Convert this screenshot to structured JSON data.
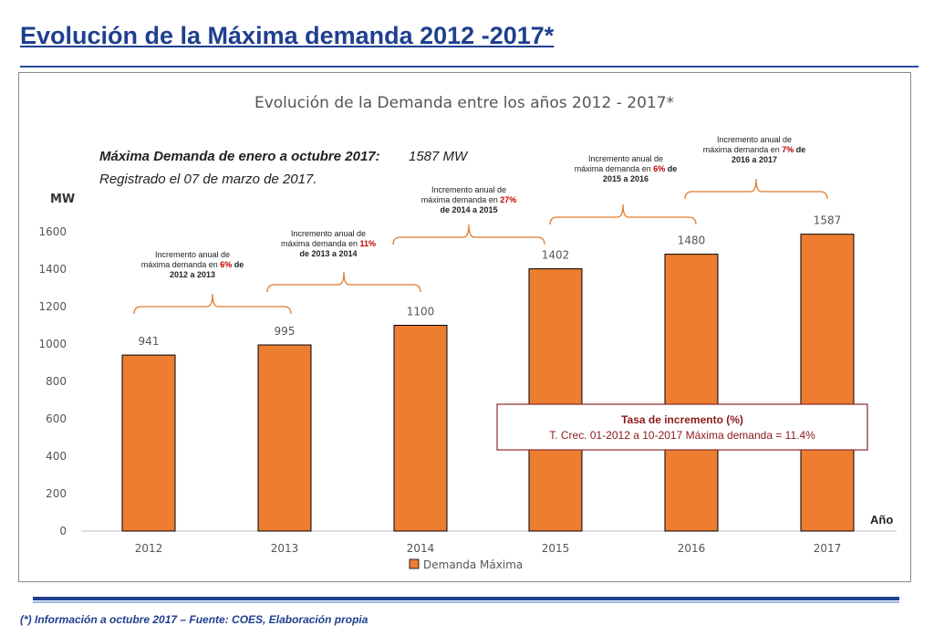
{
  "page": {
    "title": "Evolución de la Máxima demanda 2012 -2017*",
    "footnote": "(*) Información a octubre 2017 – Fuente: COES, Elaboración propia"
  },
  "chart_data": {
    "type": "bar",
    "title": "Evolución de la Demanda entre los años 2012 - 2017*",
    "ylabel": "MW",
    "xlabel": "Año",
    "ylim": [
      0,
      1600
    ],
    "yticks": [
      0,
      200,
      400,
      600,
      800,
      1000,
      1200,
      1400,
      1600
    ],
    "categories": [
      "2012",
      "2013",
      "2014",
      "2015",
      "2016",
      "2017"
    ],
    "series": [
      {
        "name": "Demanda Máxima",
        "values": [
          941,
          995,
          1100,
          1402,
          1480,
          1587
        ]
      }
    ],
    "data_labels": [
      "941",
      "995",
      "1100",
      "1402",
      "1480",
      "1587"
    ],
    "grid": false,
    "legend": "bottom",
    "colors": {
      "bar": "#ed7d31",
      "bar_outline": "#000000",
      "brace": "#e07a2a",
      "highlight": "#c00000",
      "box_border": "#8b2a2a"
    },
    "annotation": {
      "line1_bold": "Máxima Demanda de enero a octubre 2017:",
      "line1_value": "1587 MW",
      "line2": "Registrado el 07 de marzo de 2017."
    },
    "increments": [
      {
        "line1": "Incremento anual de",
        "line2_pre": "máxima demanda en ",
        "pct": "6%",
        "line2_post": " de",
        "line3": "2012 a 2013"
      },
      {
        "line1": "Incremento anual de",
        "line2_pre": "máxima demanda en ",
        "pct": "11%",
        "line2_post": "",
        "line3": "de 2013 a 2014"
      },
      {
        "line1": "Incremento anual de",
        "line2_pre": "máxima demanda en ",
        "pct": "27%",
        "line2_post": "",
        "line3": "de 2014 a 2015"
      },
      {
        "line1": "Incremento anual de",
        "line2_pre": "máxima demanda en ",
        "pct": "6%",
        "line2_post": " de",
        "line3": "2015 a 2016"
      },
      {
        "line1": "Incremento anual de",
        "line2_pre": "máxima demanda en ",
        "pct": "7%",
        "line2_post": " de",
        "line3": "2016 a 2017"
      }
    ],
    "rate_box": {
      "title": "Tasa de incremento (%)",
      "text": "T. Crec. 01-2012 a 10-2017 Máxima demanda = 11.4%"
    }
  }
}
